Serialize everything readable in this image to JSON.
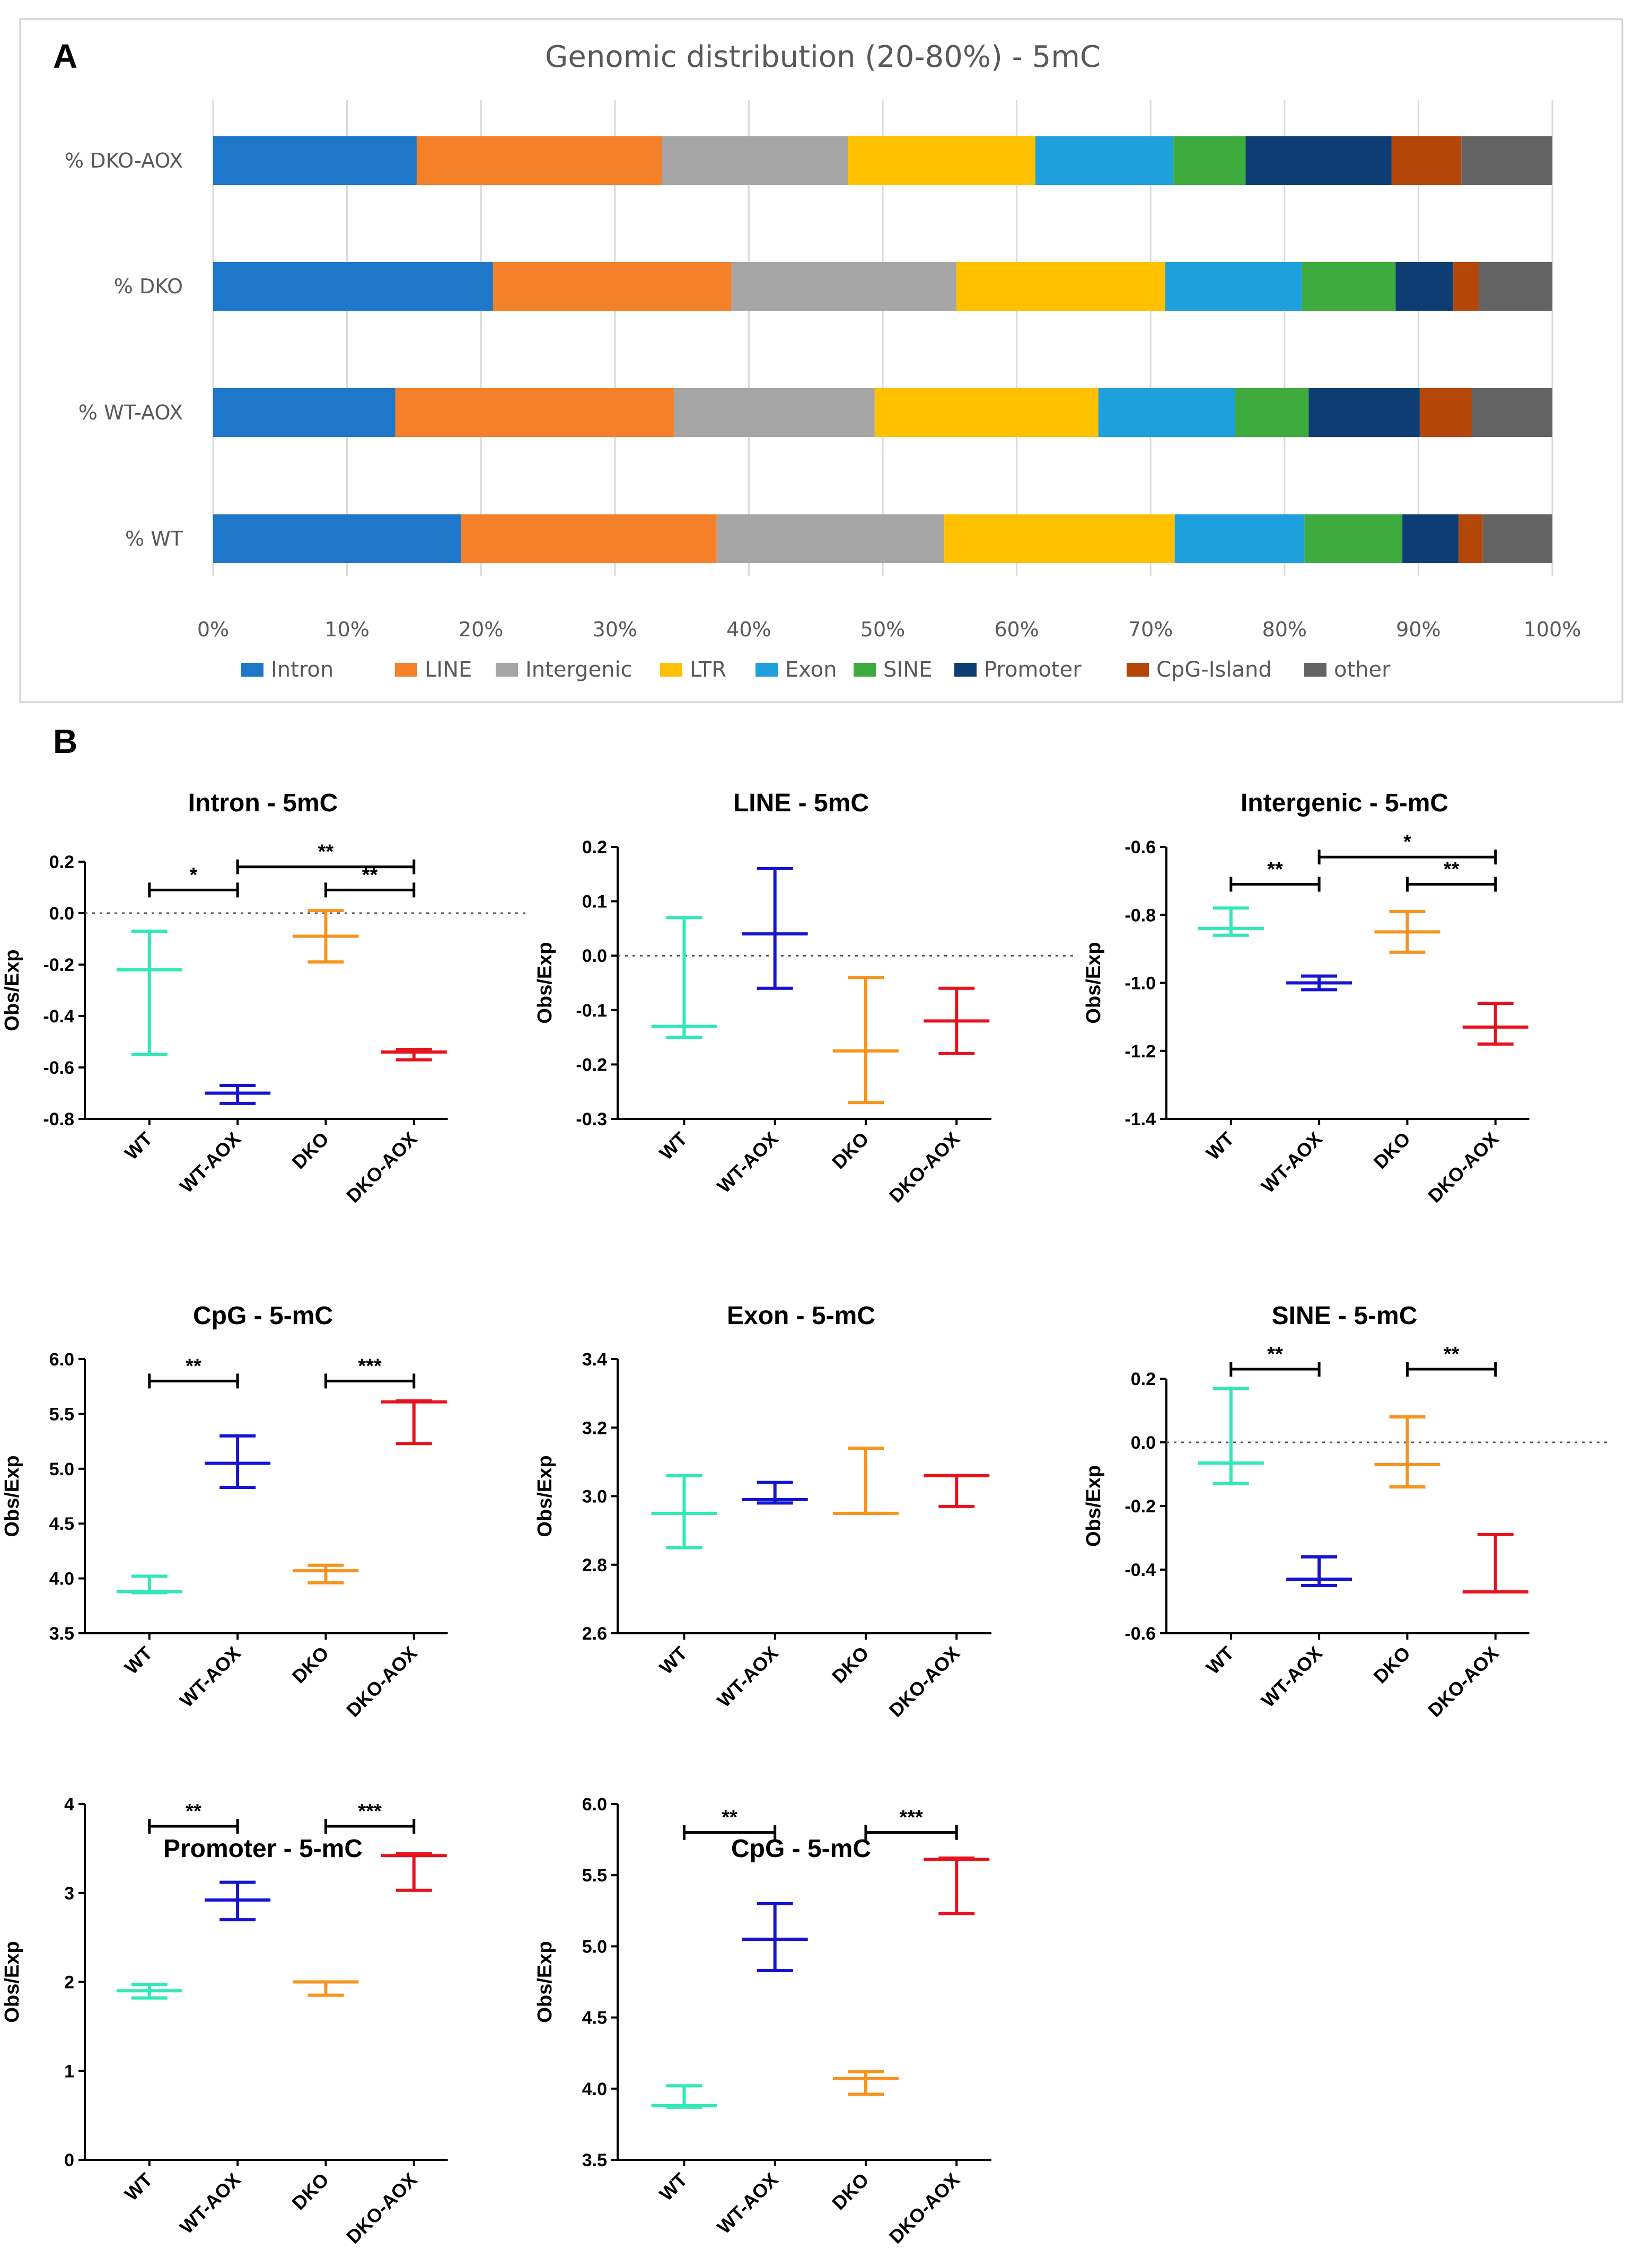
{
  "chart_data": [
    {
      "panel": "A",
      "type": "bar",
      "orientation": "horizontal",
      "stacked": true,
      "title": "Genomic distribution (20-80%) - 5mC",
      "categories": [
        "% DKO-AOX",
        "% DKO",
        "% WT-AOX",
        "% WT"
      ],
      "xlim": [
        0,
        100
      ],
      "xticks": [
        "0%",
        "10%",
        "20%",
        "30%",
        "40%",
        "50%",
        "60%",
        "70%",
        "80%",
        "90%",
        "100%"
      ],
      "grid": true,
      "legend_position": "bottom",
      "series": [
        {
          "name": "Intron",
          "color": "#1f77c9",
          "values": [
            15.2,
            20.9,
            13.6,
            18.5
          ]
        },
        {
          "name": "LINE",
          "color": "#f4802a",
          "values": [
            18.3,
            17.8,
            20.8,
            19.1
          ]
        },
        {
          "name": "Intergenic",
          "color": "#a5a5a5",
          "values": [
            13.9,
            16.8,
            15.0,
            17.0
          ]
        },
        {
          "name": "LTR",
          "color": "#ffc000",
          "values": [
            14.0,
            15.6,
            16.7,
            17.2
          ]
        },
        {
          "name": "Exon",
          "color": "#1ea0dc",
          "values": [
            10.3,
            10.2,
            10.2,
            9.7
          ]
        },
        {
          "name": "SINE",
          "color": "#3dab3d",
          "values": [
            5.4,
            7.0,
            5.5,
            7.3
          ]
        },
        {
          "name": "Promoter",
          "color": "#0e3d73",
          "values": [
            10.9,
            4.3,
            8.3,
            4.2
          ]
        },
        {
          "name": "CpG-Island",
          "color": "#b5460a",
          "values": [
            5.2,
            1.9,
            3.9,
            1.8
          ]
        },
        {
          "name": "other",
          "color": "#636363",
          "values": [
            6.8,
            5.5,
            6.0,
            5.2
          ]
        }
      ]
    },
    {
      "panel": "B",
      "type": "scatter",
      "title": "Intron - 5mC",
      "ylabel": "Obs/Exp",
      "ylim": [
        -0.8,
        0.2
      ],
      "yticks": [
        "0.2",
        "0.0",
        "-0.2",
        "-0.4",
        "-0.6",
        "-0.8"
      ],
      "zero_line": true,
      "categories": [
        "WT",
        "WT-AOX",
        "DKO",
        "DKO-AOX"
      ],
      "groups": [
        {
          "name": "WT",
          "color": "#30e8b8",
          "mean": -0.22,
          "low": -0.55,
          "high": -0.07
        },
        {
          "name": "WT-AOX",
          "color": "#1414d2",
          "mean": -0.7,
          "low": -0.74,
          "high": -0.67
        },
        {
          "name": "DKO",
          "color": "#f7931e",
          "mean": -0.09,
          "low": -0.19,
          "high": 0.01
        },
        {
          "name": "DKO-AOX",
          "color": "#e8121e",
          "mean": -0.54,
          "low": -0.57,
          "high": -0.53
        }
      ],
      "comparisons": [
        {
          "from": 0,
          "to": 1,
          "label": "*",
          "y": 0.09
        },
        {
          "from": 2,
          "to": 3,
          "label": "**",
          "y": 0.09
        },
        {
          "from": 1,
          "to": 3,
          "label": "**",
          "y": 0.18
        }
      ]
    },
    {
      "panel": "B",
      "type": "scatter",
      "title": "LINE - 5mC",
      "ylabel": "Obs/Exp",
      "ylim": [
        -0.3,
        0.2
      ],
      "yticks": [
        "0.2",
        "0.1",
        "0.0",
        "-0.1",
        "-0.2",
        "-0.3"
      ],
      "zero_line": true,
      "categories": [
        "WT",
        "WT-AOX",
        "DKO",
        "DKO-AOX"
      ],
      "groups": [
        {
          "name": "WT",
          "color": "#30e8b8",
          "mean": -0.13,
          "low": -0.15,
          "high": 0.07
        },
        {
          "name": "WT-AOX",
          "color": "#1414d2",
          "mean": 0.04,
          "low": -0.06,
          "high": 0.16
        },
        {
          "name": "DKO",
          "color": "#f7931e",
          "mean": -0.175,
          "low": -0.27,
          "high": -0.04
        },
        {
          "name": "DKO-AOX",
          "color": "#e8121e",
          "mean": -0.12,
          "low": -0.18,
          "high": -0.06
        }
      ],
      "comparisons": []
    },
    {
      "panel": "B",
      "type": "scatter",
      "title": "Intergenic - 5-mC",
      "ylabel": "Obs/Exp",
      "ylim": [
        -1.4,
        -0.6
      ],
      "yticks": [
        "-0.6",
        "-0.8",
        "-1.0",
        "-1.2",
        "-1.4"
      ],
      "zero_line": false,
      "categories": [
        "WT",
        "WT-AOX",
        "DKO",
        "DKO-AOX"
      ],
      "groups": [
        {
          "name": "WT",
          "color": "#30e8b8",
          "mean": -0.84,
          "low": -0.86,
          "high": -0.78
        },
        {
          "name": "WT-AOX",
          "color": "#1414d2",
          "mean": -1.0,
          "low": -1.02,
          "high": -0.98
        },
        {
          "name": "DKO",
          "color": "#f7931e",
          "mean": -0.85,
          "low": -0.91,
          "high": -0.79
        },
        {
          "name": "DKO-AOX",
          "color": "#e8121e",
          "mean": -1.13,
          "low": -1.18,
          "high": -1.06
        }
      ],
      "comparisons": [
        {
          "from": 0,
          "to": 1,
          "label": "**",
          "y": -0.71
        },
        {
          "from": 2,
          "to": 3,
          "label": "**",
          "y": -0.71
        },
        {
          "from": 1,
          "to": 3,
          "label": "*",
          "y": -0.63
        }
      ]
    },
    {
      "panel": "B",
      "type": "scatter",
      "title": "CpG - 5-mC",
      "ylabel": "Obs/Exp",
      "ylim": [
        3.5,
        6.0
      ],
      "yticks": [
        "6.0",
        "5.5",
        "5.0",
        "4.5",
        "4.0",
        "3.5"
      ],
      "zero_line": false,
      "categories": [
        "WT",
        "WT-AOX",
        "DKO",
        "DKO-AOX"
      ],
      "groups": [
        {
          "name": "WT",
          "color": "#30e8b8",
          "mean": 3.88,
          "low": 3.87,
          "high": 4.02
        },
        {
          "name": "WT-AOX",
          "color": "#1414d2",
          "mean": 5.05,
          "low": 4.83,
          "high": 5.3
        },
        {
          "name": "DKO",
          "color": "#f7931e",
          "mean": 4.07,
          "low": 3.96,
          "high": 4.12
        },
        {
          "name": "DKO-AOX",
          "color": "#e8121e",
          "mean": 5.61,
          "low": 5.23,
          "high": 5.62
        }
      ],
      "comparisons": [
        {
          "from": 0,
          "to": 1,
          "label": "**",
          "y": 5.8
        },
        {
          "from": 2,
          "to": 3,
          "label": "***",
          "y": 5.8
        }
      ]
    },
    {
      "panel": "B",
      "type": "scatter",
      "title": "Exon - 5-mC",
      "ylabel": "Obs/Exp",
      "ylim": [
        2.6,
        3.4
      ],
      "yticks": [
        "3.4",
        "3.2",
        "3.0",
        "2.8",
        "2.6"
      ],
      "zero_line": false,
      "categories": [
        "WT",
        "WT-AOX",
        "DKO",
        "DKO-AOX"
      ],
      "groups": [
        {
          "name": "WT",
          "color": "#30e8b8",
          "mean": 2.95,
          "low": 2.85,
          "high": 3.06
        },
        {
          "name": "WT-AOX",
          "color": "#1414d2",
          "mean": 2.99,
          "low": 2.98,
          "high": 3.04
        },
        {
          "name": "DKO",
          "color": "#f7931e",
          "mean": 2.95,
          "low": 2.95,
          "high": 3.14
        },
        {
          "name": "DKO-AOX",
          "color": "#e8121e",
          "mean": 3.06,
          "low": 2.97,
          "high": 3.06
        }
      ],
      "comparisons": []
    },
    {
      "panel": "B",
      "type": "scatter",
      "title": "SINE - 5-mC",
      "ylabel": "Obs/Exp",
      "ylim": [
        -0.6,
        0.2
      ],
      "yticks": [
        "0.2",
        "0.0",
        "-0.2",
        "-0.4",
        "-0.6"
      ],
      "zero_line": true,
      "categories": [
        "WT",
        "WT-AOX",
        "DKO",
        "DKO-AOX"
      ],
      "groups": [
        {
          "name": "WT",
          "color": "#30e8b8",
          "mean": -0.065,
          "low": -0.13,
          "high": 0.17
        },
        {
          "name": "WT-AOX",
          "color": "#1414d2",
          "mean": -0.43,
          "low": -0.45,
          "high": -0.36
        },
        {
          "name": "DKO",
          "color": "#f7931e",
          "mean": -0.07,
          "low": -0.14,
          "high": 0.08
        },
        {
          "name": "DKO-AOX",
          "color": "#e8121e",
          "mean": -0.47,
          "low": -0.47,
          "high": -0.29
        }
      ],
      "comparisons": [
        {
          "from": 0,
          "to": 1,
          "label": "**",
          "y": 0.23
        },
        {
          "from": 2,
          "to": 3,
          "label": "**",
          "y": 0.23
        }
      ]
    },
    {
      "panel": "B",
      "type": "scatter",
      "title": "Promoter - 5-mC",
      "ylabel": "Obs/Exp",
      "ylim": [
        0,
        4
      ],
      "yticks": [
        "4",
        "3",
        "2",
        "1",
        "0"
      ],
      "zero_line": false,
      "categories": [
        "WT",
        "WT-AOX",
        "DKO",
        "DKO-AOX"
      ],
      "groups": [
        {
          "name": "WT",
          "color": "#30e8b8",
          "mean": 1.9,
          "low": 1.82,
          "high": 1.97
        },
        {
          "name": "WT-AOX",
          "color": "#1414d2",
          "mean": 2.92,
          "low": 2.7,
          "high": 3.12
        },
        {
          "name": "DKO",
          "color": "#f7931e",
          "mean": 2.0,
          "low": 1.85,
          "high": 2.0
        },
        {
          "name": "DKO-AOX",
          "color": "#e8121e",
          "mean": 3.42,
          "low": 3.03,
          "high": 3.44
        }
      ],
      "comparisons": [
        {
          "from": 0,
          "to": 1,
          "label": "**",
          "y": 3.75
        },
        {
          "from": 2,
          "to": 3,
          "label": "***",
          "y": 3.75
        }
      ]
    },
    {
      "panel": "B",
      "type": "scatter",
      "title": "CpG - 5-mC",
      "ylabel": "Obs/Exp",
      "ylim": [
        3.5,
        6.0
      ],
      "yticks": [
        "6.0",
        "5.5",
        "5.0",
        "4.5",
        "4.0",
        "3.5"
      ],
      "zero_line": false,
      "categories": [
        "WT",
        "WT-AOX",
        "DKO",
        "DKO-AOX"
      ],
      "groups": [
        {
          "name": "WT",
          "color": "#30e8b8",
          "mean": 3.88,
          "low": 3.87,
          "high": 4.02
        },
        {
          "name": "WT-AOX",
          "color": "#1414d2",
          "mean": 5.05,
          "low": 4.83,
          "high": 5.3
        },
        {
          "name": "DKO",
          "color": "#f7931e",
          "mean": 4.07,
          "low": 3.96,
          "high": 4.12
        },
        {
          "name": "DKO-AOX",
          "color": "#e8121e",
          "mean": 5.61,
          "low": 5.23,
          "high": 5.62
        }
      ],
      "comparisons": [
        {
          "from": 0,
          "to": 1,
          "label": "**",
          "y": 5.8
        },
        {
          "from": 2,
          "to": 3,
          "label": "***",
          "y": 5.8
        }
      ]
    }
  ]
}
